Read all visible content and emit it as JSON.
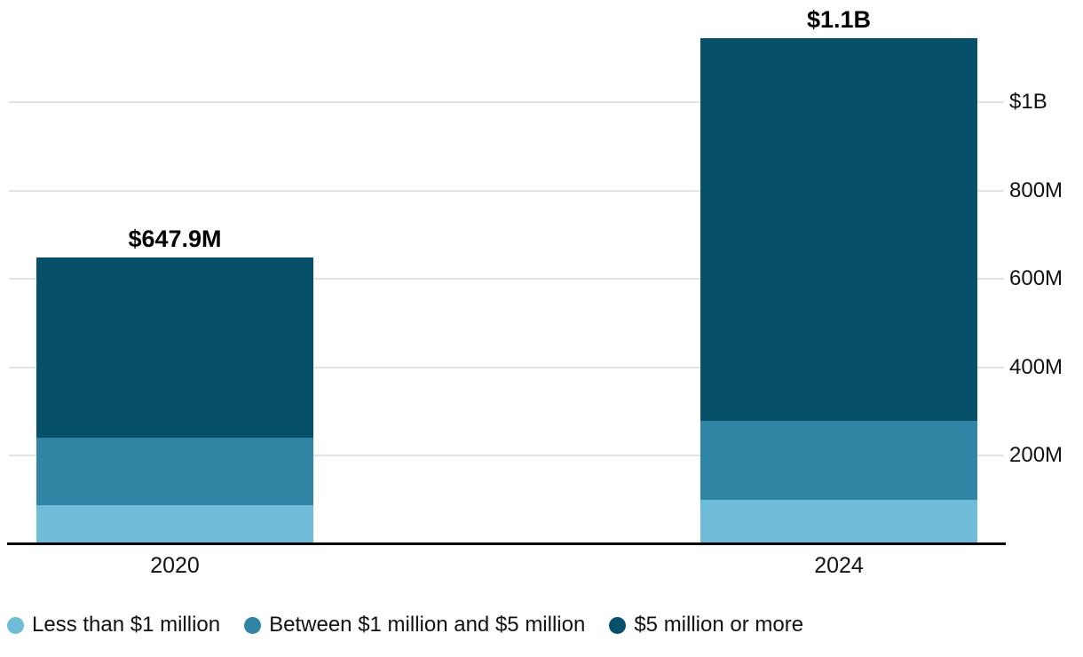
{
  "chart_data": {
    "type": "bar",
    "subtype": "stacked",
    "title": "",
    "categories": [
      "2020",
      "2024"
    ],
    "series": [
      {
        "name": "Less than $1 million",
        "color": "#6fbcd9",
        "values": [
          88,
          100
        ]
      },
      {
        "name": "Between $1 million and $5 million",
        "color": "#2f85a3",
        "values": [
          153,
          179
        ]
      },
      {
        "name": "$5 million or more",
        "color": "#07506a",
        "values": [
          407,
          865
        ]
      }
    ],
    "total_labels": [
      "$647.9M",
      "$1.1B"
    ],
    "y_axis": {
      "side": "right",
      "ticks": [
        {
          "value": 200,
          "label": "200M"
        },
        {
          "value": 400,
          "label": "400M"
        },
        {
          "value": 600,
          "label": "600M"
        },
        {
          "value": 800,
          "label": "800M"
        },
        {
          "value": 1000,
          "label": "$1B"
        }
      ],
      "ylim": [
        0,
        1231
      ]
    },
    "grid": true,
    "legend_position": "bottom"
  },
  "colors": {
    "background": "#ffffff",
    "gridline": "#e2e2e2",
    "axis_line": "#000000",
    "text": "#121212"
  }
}
